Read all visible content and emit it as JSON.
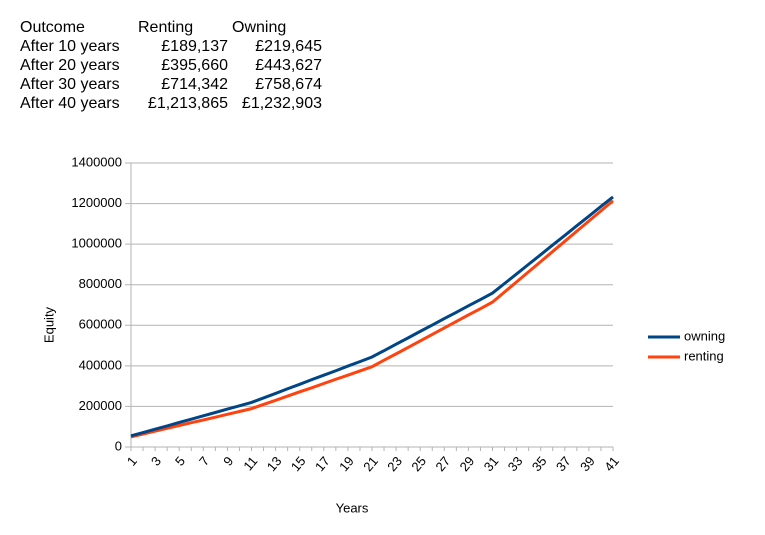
{
  "table": {
    "header": [
      "Outcome",
      "Renting",
      "Owning"
    ],
    "rows": [
      [
        "After 10 years",
        "£189,137",
        "£219,645"
      ],
      [
        "After 20 years",
        "£395,660",
        "£443,627"
      ],
      [
        "After 30 years",
        "£714,342",
        "£758,674"
      ],
      [
        "After 40 years",
        "£1,213,865",
        "£1,232,903"
      ]
    ]
  },
  "chart_data": {
    "type": "line",
    "x_label": "Years",
    "y_label": "Equity",
    "categories": [
      1,
      null,
      3,
      null,
      5,
      null,
      7,
      null,
      9,
      null,
      11,
      null,
      13,
      null,
      15,
      null,
      17,
      null,
      19,
      null,
      21,
      null,
      23,
      null,
      25,
      null,
      27,
      null,
      29,
      null,
      31,
      null,
      33,
      null,
      35,
      null,
      37,
      null,
      39,
      null,
      41
    ],
    "ylim": [
      0,
      1400000
    ],
    "yticks": [
      0,
      200000,
      400000,
      600000,
      800000,
      1000000,
      1200000,
      1400000
    ],
    "grid": true,
    "legend": "right",
    "series": [
      {
        "name": "owning",
        "color": "#004586",
        "values": [
          55000,
          71000,
          88000,
          104000,
          121000,
          137000,
          154000,
          170000,
          187000,
          203000,
          219645,
          242000,
          264000,
          287000,
          309000,
          332000,
          354000,
          376000,
          399000,
          421000,
          443627,
          475000,
          507000,
          538000,
          570000,
          601000,
          633000,
          664000,
          696000,
          727000,
          758674,
          806000,
          853000,
          901000,
          948000,
          996000,
          1043000,
          1091000,
          1138000,
          1186000,
          1232903
        ]
      },
      {
        "name": "renting",
        "color": "#ff420e",
        "values": [
          50000,
          64000,
          78000,
          92000,
          106000,
          120000,
          133000,
          147000,
          161000,
          175000,
          189137,
          210000,
          230000,
          251000,
          272000,
          292000,
          313000,
          334000,
          354000,
          375000,
          395660,
          428000,
          459000,
          491000,
          523000,
          555000,
          587000,
          619000,
          651000,
          682000,
          714342,
          764000,
          814000,
          864000,
          914000,
          964000,
          1014000,
          1064000,
          1114000,
          1164000,
          1213865
        ]
      }
    ]
  }
}
